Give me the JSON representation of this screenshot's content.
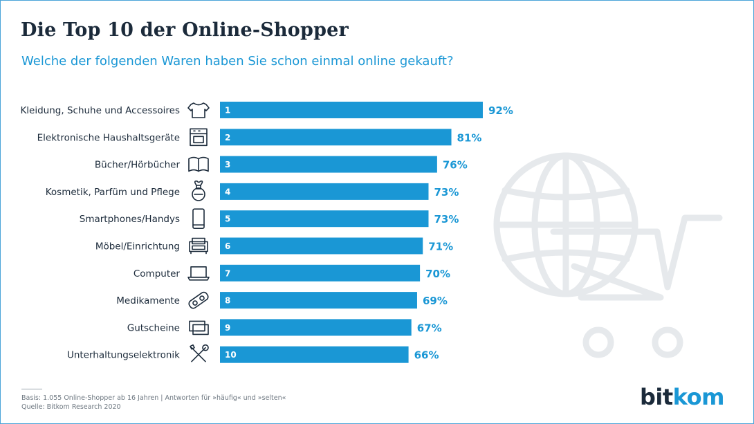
{
  "header": {
    "title": "Die Top 10 der Online-Shopper",
    "subtitle": "Welche der folgenden Waren haben Sie schon einmal online gekauft?"
  },
  "chart_data": {
    "type": "bar",
    "orientation": "horizontal",
    "categories": [
      "Kleidung, Schuhe und Accessoires",
      "Elektronische Haushaltsgeräte",
      "Bücher/Hörbücher",
      "Kosmetik, Parfüm und Pflege",
      "Smartphones/Handys",
      "Möbel/Einrichtung",
      "Computer",
      "Medikamente",
      "Gutscheine",
      "Unterhaltungselektronik"
    ],
    "ranks": [
      "1",
      "2",
      "3",
      "4",
      "5",
      "6",
      "7",
      "8",
      "9",
      "10"
    ],
    "values": [
      92,
      81,
      76,
      73,
      73,
      71,
      70,
      69,
      67,
      66
    ],
    "value_labels": [
      "92%",
      "81%",
      "76%",
      "73%",
      "73%",
      "71%",
      "70%",
      "69%",
      "67%",
      "66%"
    ],
    "icons": [
      "tshirt-icon",
      "oven-icon",
      "book-icon",
      "perfume-icon",
      "smartphone-icon",
      "sofa-icon",
      "laptop-icon",
      "pills-icon",
      "voucher-icon",
      "tools-icon"
    ],
    "bar_color": "#1a97d5",
    "xlim": [
      0,
      100
    ],
    "grid": false
  },
  "footer": {
    "basis": "Basis: 1.055 Online-Shopper ab 16 Jahren | Antworten für »häufig« und »selten«",
    "source": "Quelle: Bitkom Research 2020",
    "logo_part1": "bit",
    "logo_part2": "kom"
  },
  "colors": {
    "accent": "#1a97d5",
    "text": "#1b2a3a",
    "background_art": "#e6e9ec"
  }
}
